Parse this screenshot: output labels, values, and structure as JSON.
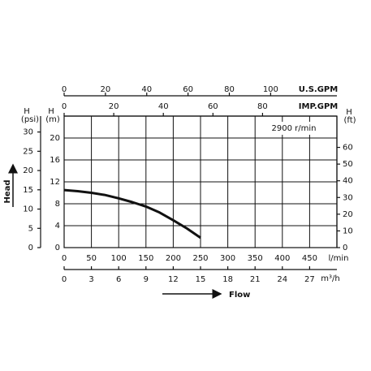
{
  "chart_data": {
    "type": "line",
    "speed_label": "2900 r/min",
    "y_title": "Head",
    "x_title": "Flow",
    "psi_header": [
      "H",
      "(psi)"
    ],
    "m_header": [
      "H",
      "(m)"
    ],
    "ft_header": [
      "H",
      "(ft)"
    ],
    "x_unit": "l/min",
    "m3h_unit": "m³/h",
    "usgpm_unit": "U.S.GPM",
    "impgpm_unit": "IMP.GPM",
    "x": [
      0,
      25,
      50,
      75,
      100,
      125,
      150,
      175,
      200,
      225,
      250
    ],
    "series": [
      {
        "name": "2900 r/min",
        "color": "#111111",
        "values": [
          10.5,
          10.3,
          10.0,
          9.6,
          9.0,
          8.3,
          7.5,
          6.4,
          5.0,
          3.5,
          1.8
        ]
      }
    ],
    "xlim": [
      0,
      500
    ],
    "xticks": [
      0,
      50,
      100,
      150,
      200,
      250,
      300,
      350,
      400,
      450
    ],
    "ylim": [
      0,
      24
    ],
    "yticks": [
      0,
      4,
      8,
      12,
      16,
      20
    ],
    "psi_lim": [
      0,
      34.13
    ],
    "psi_ticks": [
      0,
      5,
      10,
      15,
      20,
      25,
      30
    ],
    "ft_lim": [
      0,
      78.74
    ],
    "ft_ticks": [
      0,
      10,
      20,
      30,
      40,
      50,
      60
    ],
    "m3h_lim": [
      0,
      30
    ],
    "m3h_ticks": [
      0,
      3,
      6,
      9,
      12,
      15,
      18,
      21,
      24,
      27
    ],
    "usgpm_lim": [
      0,
      132.09
    ],
    "usgpm_ticks": [
      0,
      20,
      40,
      60,
      80,
      100
    ],
    "impgpm_lim": [
      0,
      109.98
    ],
    "impgpm_ticks": [
      0,
      20,
      40,
      60,
      80
    ],
    "grid": true
  }
}
